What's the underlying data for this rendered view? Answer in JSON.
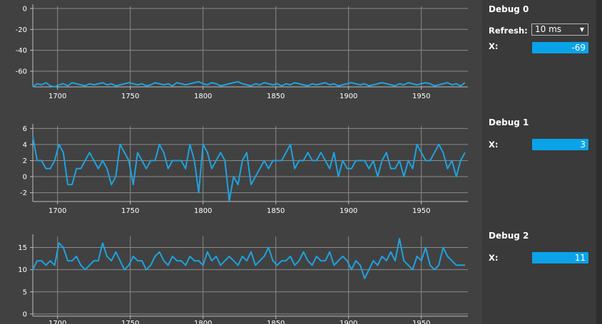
{
  "colors": {
    "line": "#1ea3e0",
    "grid": "#8a8a8a",
    "axis": "#bdbdbd",
    "text": "#ffffff",
    "accent": "#0aa3e8"
  },
  "charts": [
    {
      "type": "line",
      "yticks": [
        0,
        -20,
        -40,
        -60
      ],
      "ylim": [
        -75,
        2
      ],
      "xlim": [
        1683,
        1982
      ],
      "xticks": [
        1700,
        1750,
        1800,
        1850,
        1900,
        1950
      ]
    },
    {
      "type": "line",
      "yticks": [
        6,
        4,
        2,
        0,
        -2
      ],
      "ylim": [
        -3.1,
        6.3
      ],
      "xlim": [
        1683,
        1982
      ],
      "xticks": [
        1700,
        1750,
        1800,
        1850,
        1900,
        1950
      ]
    },
    {
      "type": "line",
      "yticks": [
        15,
        10,
        5,
        0
      ],
      "ylim": [
        -0.5,
        17.5
      ],
      "xlim": [
        1683,
        1982
      ],
      "xticks": [
        1700,
        1750,
        1800,
        1850,
        1900,
        1950
      ]
    }
  ],
  "chart_data": [
    {
      "type": "line",
      "x": [
        1683,
        1686,
        1689,
        1692,
        1695,
        1698,
        1701,
        1704,
        1707,
        1710,
        1713,
        1716,
        1719,
        1722,
        1725,
        1728,
        1731,
        1734,
        1737,
        1740,
        1743,
        1746,
        1749,
        1752,
        1755,
        1758,
        1761,
        1764,
        1767,
        1770,
        1773,
        1776,
        1779,
        1782,
        1785,
        1788,
        1791,
        1794,
        1797,
        1800,
        1803,
        1806,
        1809,
        1812,
        1815,
        1818,
        1821,
        1824,
        1827,
        1830,
        1833,
        1836,
        1839,
        1842,
        1845,
        1848,
        1851,
        1854,
        1857,
        1860,
        1863,
        1866,
        1869,
        1872,
        1875,
        1878,
        1881,
        1884,
        1887,
        1890,
        1893,
        1896,
        1899,
        1902,
        1905,
        1908,
        1911,
        1914,
        1917,
        1920,
        1923,
        1926,
        1929,
        1932,
        1935,
        1938,
        1941,
        1944,
        1947,
        1950,
        1953,
        1956,
        1959,
        1962,
        1965,
        1968,
        1971,
        1974,
        1977,
        1980
      ],
      "values": [
        -75,
        -72,
        -73,
        -71,
        -74,
        -75,
        -73,
        -72,
        -74,
        -71,
        -72,
        -73,
        -74,
        -72,
        -73,
        -72,
        -71,
        -73,
        -72,
        -74,
        -73,
        -72,
        -71,
        -72,
        -73,
        -72,
        -74,
        -73,
        -71,
        -72,
        -73,
        -72,
        -74,
        -71,
        -72,
        -73,
        -72,
        -71,
        -70,
        -72,
        -73,
        -71,
        -72,
        -74,
        -73,
        -72,
        -71,
        -70,
        -72,
        -73,
        -74,
        -72,
        -73,
        -71,
        -72,
        -73,
        -72,
        -74,
        -72,
        -73,
        -71,
        -72,
        -73,
        -74,
        -72,
        -73,
        -72,
        -71,
        -73,
        -72,
        -74,
        -73,
        -72,
        -71,
        -72,
        -73,
        -72,
        -74,
        -73,
        -72,
        -71,
        -72,
        -73,
        -74,
        -72,
        -73,
        -71,
        -72,
        -73,
        -72,
        -71,
        -72,
        -74,
        -73,
        -72,
        -71,
        -73,
        -72,
        -74,
        -71
      ],
      "xlim": [
        1683,
        1982
      ],
      "ylim": [
        -75,
        2
      ]
    },
    {
      "type": "line",
      "x": [
        1683,
        1686,
        1689,
        1692,
        1695,
        1698,
        1701,
        1704,
        1707,
        1710,
        1713,
        1716,
        1719,
        1722,
        1725,
        1728,
        1731,
        1734,
        1737,
        1740,
        1743,
        1746,
        1749,
        1752,
        1755,
        1758,
        1761,
        1764,
        1767,
        1770,
        1773,
        1776,
        1779,
        1782,
        1785,
        1788,
        1791,
        1794,
        1797,
        1800,
        1803,
        1806,
        1809,
        1812,
        1815,
        1818,
        1821,
        1824,
        1827,
        1830,
        1833,
        1836,
        1839,
        1842,
        1845,
        1848,
        1851,
        1854,
        1857,
        1860,
        1863,
        1866,
        1869,
        1872,
        1875,
        1878,
        1881,
        1884,
        1887,
        1890,
        1893,
        1896,
        1899,
        1902,
        1905,
        1908,
        1911,
        1914,
        1917,
        1920,
        1923,
        1926,
        1929,
        1932,
        1935,
        1938,
        1941,
        1944,
        1947,
        1950,
        1953,
        1956,
        1959,
        1962,
        1965,
        1968,
        1971,
        1974,
        1977,
        1980
      ],
      "values": [
        5,
        2,
        2,
        1,
        1,
        2,
        4,
        3,
        -1,
        -1,
        1,
        1,
        2,
        3,
        2,
        1,
        2,
        1,
        -1,
        0,
        4,
        3,
        2,
        -1,
        3,
        2,
        1,
        2,
        2,
        4,
        3,
        1,
        2,
        2,
        2,
        1,
        4,
        2,
        -2,
        4,
        3,
        1,
        2,
        3,
        2,
        -3,
        0,
        -1,
        2,
        3,
        -1,
        0,
        1,
        2,
        1,
        2,
        2,
        2,
        3,
        4,
        1,
        2,
        2,
        3,
        2,
        2,
        3,
        2,
        1,
        3,
        0,
        2,
        1,
        1,
        2,
        2,
        2,
        1,
        2,
        0,
        2,
        3,
        1,
        1,
        2,
        0,
        2,
        1,
        4,
        3,
        2,
        2,
        3,
        4,
        3,
        1,
        2,
        0,
        2,
        3
      ],
      "xlim": [
        1683,
        1982
      ],
      "ylim": [
        -3.1,
        6.3
      ]
    },
    {
      "type": "line",
      "x": [
        1683,
        1686,
        1689,
        1692,
        1695,
        1698,
        1701,
        1704,
        1707,
        1710,
        1713,
        1716,
        1719,
        1722,
        1725,
        1728,
        1731,
        1734,
        1737,
        1740,
        1743,
        1746,
        1749,
        1752,
        1755,
        1758,
        1761,
        1764,
        1767,
        1770,
        1773,
        1776,
        1779,
        1782,
        1785,
        1788,
        1791,
        1794,
        1797,
        1800,
        1803,
        1806,
        1809,
        1812,
        1815,
        1818,
        1821,
        1824,
        1827,
        1830,
        1833,
        1836,
        1839,
        1842,
        1845,
        1848,
        1851,
        1854,
        1857,
        1860,
        1863,
        1866,
        1869,
        1872,
        1875,
        1878,
        1881,
        1884,
        1887,
        1890,
        1893,
        1896,
        1899,
        1902,
        1905,
        1908,
        1911,
        1914,
        1917,
        1920,
        1923,
        1926,
        1929,
        1932,
        1935,
        1938,
        1941,
        1944,
        1947,
        1950,
        1953,
        1956,
        1959,
        1962,
        1965,
        1968,
        1971,
        1974,
        1977,
        1980
      ],
      "values": [
        10,
        12,
        12,
        11,
        12,
        11,
        16,
        15,
        12,
        12,
        13,
        11,
        10,
        11,
        12,
        12,
        16,
        13,
        12,
        14,
        12,
        10,
        11,
        13,
        12,
        12,
        10,
        11,
        13,
        14,
        12,
        11,
        13,
        12,
        12,
        11,
        13,
        12,
        12,
        11,
        14,
        12,
        13,
        11,
        12,
        13,
        12,
        11,
        13,
        12,
        14,
        11,
        12,
        13,
        15,
        12,
        11,
        12,
        12,
        13,
        11,
        12,
        14,
        12,
        11,
        13,
        12,
        12,
        14,
        11,
        12,
        13,
        12,
        10,
        12,
        11,
        8,
        10,
        12,
        11,
        13,
        12,
        14,
        12,
        17,
        12,
        11,
        10,
        13,
        12,
        15,
        11,
        10,
        11,
        15,
        13,
        12,
        11,
        11,
        11
      ],
      "xlim": [
        1683,
        1982
      ],
      "ylim": [
        -0.5,
        17.5
      ]
    }
  ],
  "side": {
    "panels": [
      {
        "title": "Debug 0",
        "refresh_label": "Refresh:",
        "refresh_value": "10 ms",
        "x_label": "X:",
        "x_value": "-69"
      },
      {
        "title": "Debug 1",
        "x_label": "X:",
        "x_value": "3"
      },
      {
        "title": "Debug 2",
        "x_label": "X:",
        "x_value": "11"
      }
    ],
    "icons": {
      "dropdown": "triangle-down-icon"
    }
  }
}
